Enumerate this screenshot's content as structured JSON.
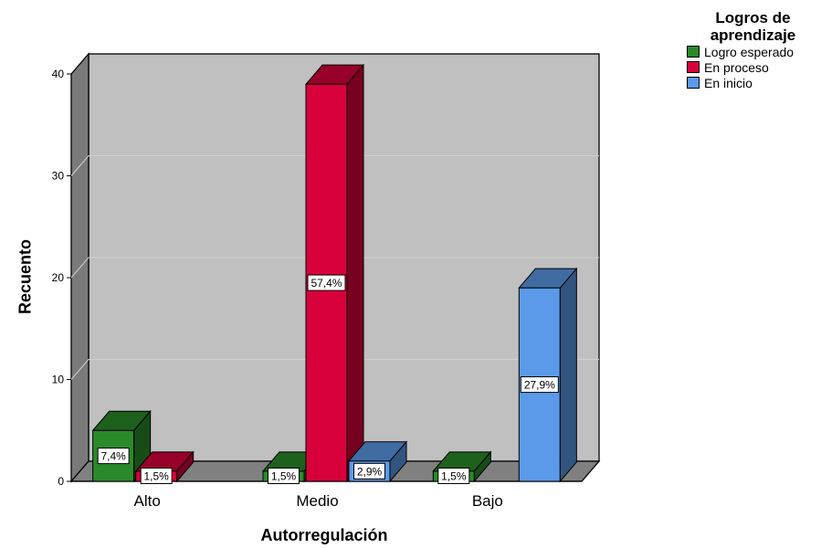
{
  "chart_data": {
    "type": "bar",
    "style": "3d-clustered",
    "categories": [
      "Alto",
      "Medio",
      "Bajo"
    ],
    "series": [
      {
        "name": "Logro esperado",
        "values": [
          5,
          1,
          1
        ],
        "labels": [
          "7,4%",
          "1,5%",
          "1,5%"
        ],
        "color": "#2a8a2a"
      },
      {
        "name": "En proceso",
        "values": [
          1,
          39,
          0
        ],
        "labels": [
          "1,5%",
          "57,4%",
          ""
        ],
        "color": "#d8003a"
      },
      {
        "name": "En inicio",
        "values": [
          0,
          2,
          19
        ],
        "labels": [
          "",
          "2,9%",
          "27,9%"
        ],
        "color": "#5b9ae8"
      }
    ],
    "title": "",
    "xlabel": "Autorregulación",
    "ylabel": "Recuento",
    "ylim": [
      0,
      40
    ],
    "yticks": [
      0,
      10,
      20,
      30,
      40
    ],
    "grid": true,
    "legend_position": "top-right",
    "legend_title": "Logros de aprendizaje",
    "wall_color": "#c0c0c0"
  }
}
